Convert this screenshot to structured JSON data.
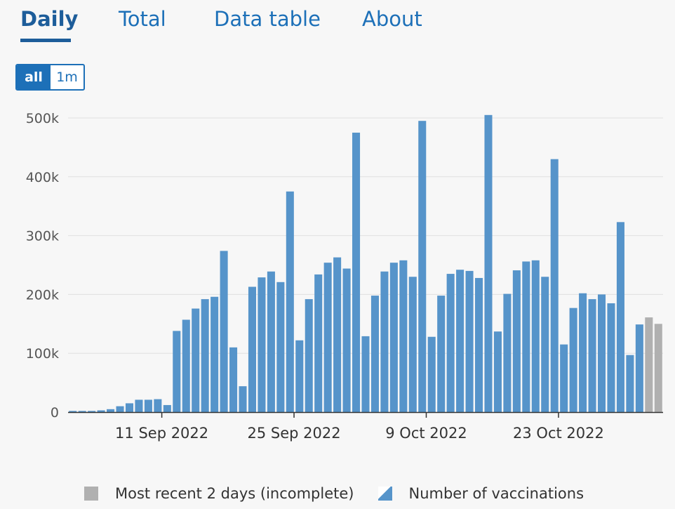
{
  "tabs": [
    {
      "label": "Daily",
      "active": true
    },
    {
      "label": "Total",
      "active": false
    },
    {
      "label": "Data table",
      "active": false
    },
    {
      "label": "About",
      "active": false
    }
  ],
  "range_selector": [
    {
      "label": "all",
      "active": true
    },
    {
      "label": "1m",
      "active": false
    }
  ],
  "legend": [
    {
      "label": "Most recent 2 days (incomplete)",
      "color": "#b0b0b0"
    },
    {
      "label": "Number of vaccinations",
      "color": "#5694ca"
    }
  ],
  "chart_data": {
    "type": "bar",
    "ylim": [
      0,
      500000
    ],
    "yticks": [
      0,
      100000,
      200000,
      300000,
      400000,
      500000
    ],
    "ytick_labels": [
      "0",
      "100k",
      "200k",
      "300k",
      "400k",
      "500k"
    ],
    "x_start": "2022-09-01",
    "xticks": [
      {
        "date": "2022-09-11",
        "label": "11 Sep 2022"
      },
      {
        "date": "2022-09-25",
        "label": "25 Sep 2022"
      },
      {
        "date": "2022-10-09",
        "label": "9 Oct 2022"
      },
      {
        "date": "2022-10-23",
        "label": "23 Oct 2022"
      }
    ],
    "values": [
      2000,
      2000,
      2000,
      3000,
      5000,
      10000,
      15000,
      21000,
      21000,
      22000,
      12000,
      138000,
      157000,
      176000,
      192000,
      196000,
      274000,
      110000,
      44000,
      213000,
      229000,
      239000,
      221000,
      375000,
      122000,
      192000,
      234000,
      254000,
      263000,
      244000,
      475000,
      129000,
      198000,
      239000,
      254000,
      258000,
      230000,
      495000,
      128000,
      198000,
      235000,
      242000,
      240000,
      228000,
      505000,
      137000,
      201000,
      241000,
      256000,
      258000,
      230000,
      430000,
      115000,
      177000,
      202000,
      192000,
      200000,
      185000,
      323000,
      97000,
      149000,
      161000,
      150000
    ],
    "incomplete_last": 2,
    "colors": {
      "complete": "#5694ca",
      "incomplete": "#b0b0b0"
    },
    "grid": true
  }
}
